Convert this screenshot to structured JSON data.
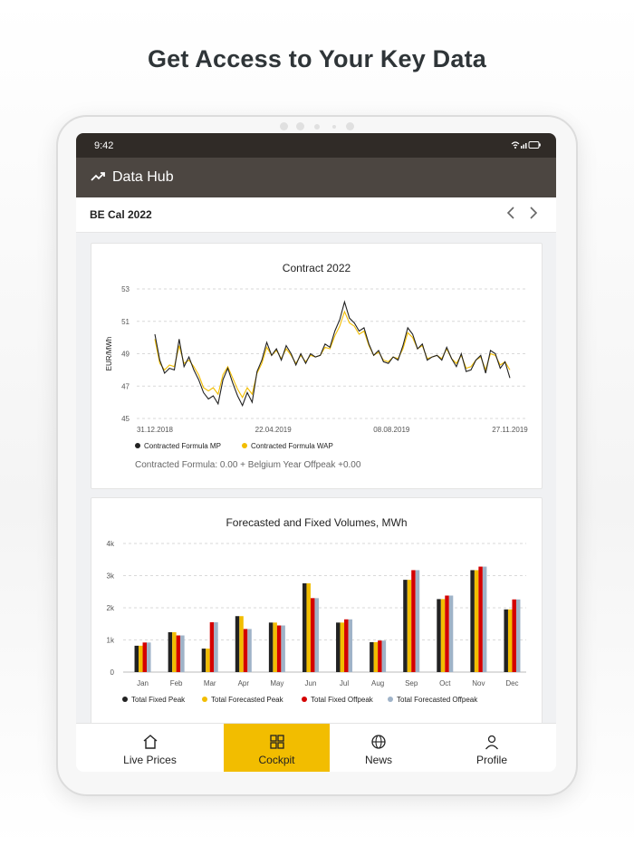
{
  "headline": "Get Access to Your Key Data",
  "status": {
    "time": "9:42",
    "icons": "wifi signal battery"
  },
  "appbar": {
    "title": "Data Hub",
    "icon": "trending-up-icon"
  },
  "subbar": {
    "title": "BE Cal 2022",
    "prev_icon": "chevron-left-icon",
    "next_icon": "chevron-right-icon"
  },
  "colors": {
    "accent": "#f2bd00",
    "appbar": "#4c4641",
    "statusbar": "#302b27",
    "mp": "#222222",
    "wap": "#f2bd00",
    "fixed_peak": "#222222",
    "forecast_peak": "#f2bd00",
    "fixed_offpeak": "#d40000",
    "forecast_offpeak": "#9fb3c8"
  },
  "chart_data": [
    {
      "type": "line",
      "title": "Contract 2022",
      "ylabel": "EUR/MWh",
      "ylim": [
        45,
        53
      ],
      "yticks": [
        "45",
        "47",
        "49",
        "51",
        "53"
      ],
      "xticks": [
        "31.12.2018",
        "22.04.2019",
        "08.08.2019",
        "27.11.2019"
      ],
      "grid": true,
      "legend_position": "bottom-left",
      "series": [
        {
          "name": "Contracted Formula MP",
          "values": [
            50.2,
            48.6,
            47.8,
            48.1,
            48.0,
            49.9,
            48.2,
            48.8,
            48.0,
            47.4,
            46.6,
            46.2,
            46.4,
            45.9,
            47.4,
            48.1,
            47.2,
            46.4,
            45.8,
            46.6,
            46.0,
            47.9,
            48.6,
            49.7,
            48.9,
            49.3,
            48.6,
            49.5,
            49.0,
            48.3,
            49.0,
            48.4,
            49.0,
            48.8,
            48.9,
            49.6,
            49.4,
            50.4,
            51.1,
            52.2,
            51.2,
            50.9,
            50.4,
            50.6,
            49.6,
            48.9,
            49.2,
            48.5,
            48.4,
            48.8,
            48.6,
            49.5,
            50.6,
            50.2,
            49.3,
            49.6,
            48.6,
            48.8,
            48.9,
            48.6,
            49.4,
            48.7,
            48.2,
            49.0,
            47.9,
            48.0,
            48.6,
            48.9,
            47.8,
            49.2,
            49.0,
            48.1,
            48.5,
            47.5
          ]
        },
        {
          "name": "Contracted Formula WAP",
          "values": [
            49.9,
            48.4,
            48.0,
            48.3,
            48.2,
            49.5,
            48.4,
            48.6,
            48.2,
            47.7,
            46.9,
            46.7,
            46.9,
            46.5,
            47.7,
            48.2,
            47.5,
            46.8,
            46.3,
            46.9,
            46.5,
            47.8,
            48.4,
            49.4,
            48.9,
            49.2,
            48.7,
            49.3,
            48.9,
            48.4,
            48.9,
            48.5,
            48.9,
            48.8,
            48.9,
            49.4,
            49.3,
            50.1,
            50.7,
            51.6,
            50.9,
            50.7,
            50.2,
            50.4,
            49.5,
            48.9,
            49.1,
            48.6,
            48.5,
            48.8,
            48.7,
            49.3,
            50.3,
            50.0,
            49.3,
            49.5,
            48.7,
            48.8,
            48.9,
            48.7,
            49.3,
            48.7,
            48.4,
            48.9,
            48.1,
            48.2,
            48.6,
            48.8,
            48.0,
            49.0,
            48.9,
            48.3,
            48.5,
            48.0
          ]
        }
      ],
      "note": "Contracted Formula: 0.00 + Belgium Year Offpeak +0.00"
    },
    {
      "type": "bar",
      "title": "Forecasted and Fixed Volumes, MWh",
      "ylim": [
        0,
        4000
      ],
      "yticks": [
        "0",
        "1k",
        "2k",
        "3k",
        "4k"
      ],
      "categories": [
        "Jan",
        "Feb",
        "Mar",
        "Apr",
        "May",
        "Jun",
        "Jul",
        "Aug",
        "Sep",
        "Oct",
        "Nov",
        "Dec"
      ],
      "grid": true,
      "legend_position": "bottom",
      "series": [
        {
          "name": "Total Fixed Peak",
          "values": [
            820,
            1240,
            730,
            1740,
            1540,
            2760,
            1540,
            930,
            2870,
            2270,
            3170,
            1950
          ]
        },
        {
          "name": "Total Forecasted Peak",
          "values": [
            820,
            1240,
            730,
            1740,
            1540,
            2760,
            1540,
            930,
            2870,
            2270,
            3170,
            1950
          ]
        },
        {
          "name": "Total Fixed Offpeak",
          "values": [
            920,
            1140,
            1550,
            1340,
            1450,
            2300,
            1640,
            980,
            3170,
            2380,
            3280,
            2260
          ]
        },
        {
          "name": "Total Forecasted Offpeak",
          "values": [
            920,
            1140,
            1550,
            1340,
            1450,
            2300,
            1640,
            980,
            3170,
            2380,
            3280,
            2260
          ]
        }
      ]
    }
  ],
  "tabs": [
    {
      "label": "Live Prices",
      "icon": "home-icon"
    },
    {
      "label": "Cockpit",
      "icon": "dashboard-icon",
      "active": true
    },
    {
      "label": "News",
      "icon": "globe-icon"
    },
    {
      "label": "Profile",
      "icon": "person-icon"
    }
  ]
}
